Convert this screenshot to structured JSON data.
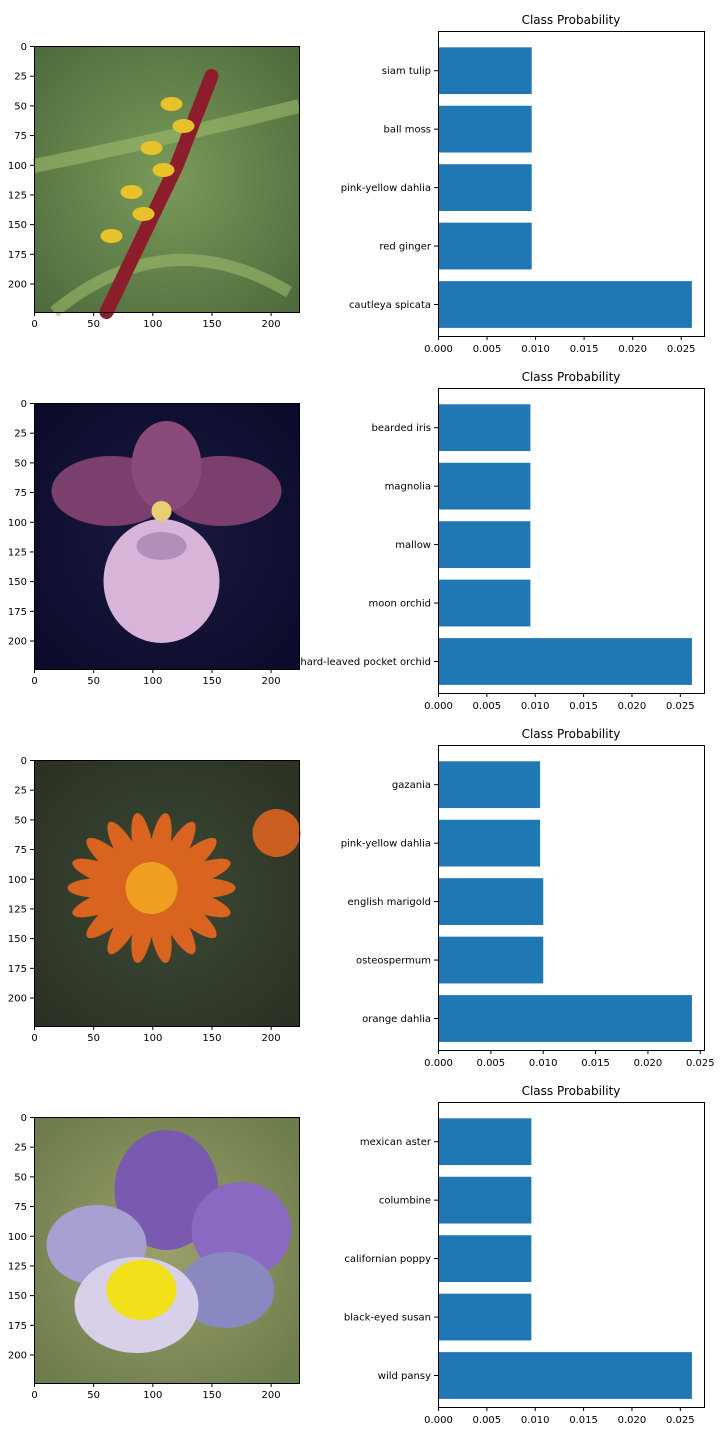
{
  "bar_color": "#1f77b4",
  "image_axis": {
    "xticks": [
      0,
      50,
      100,
      150,
      200
    ],
    "yticks": [
      0,
      25,
      50,
      75,
      100,
      125,
      150,
      175,
      200
    ],
    "xlim": [
      0,
      224
    ],
    "ylim": [
      224,
      0
    ]
  },
  "panels": [
    {
      "image_icon": "cautleya-spicata-flower-photo",
      "image_colors": {
        "bg": "#4d6a3c",
        "mid": "#7a9a5a",
        "stem": "#8b1e2a",
        "petal": "#e8c22a"
      }
    },
    {
      "image_icon": "hard-leaved-pocket-orchid-photo",
      "image_colors": {
        "bg": "#0a0a2a",
        "mid": "#1a1a40",
        "stem": "#7b3f6e",
        "petal": "#d8b4d8"
      }
    },
    {
      "image_icon": "orange-dahlia-photo",
      "image_colors": {
        "bg": "#2a3024",
        "mid": "#3c4a34",
        "stem": "#d9641f",
        "petal": "#f0a020"
      }
    },
    {
      "image_icon": "wild-pansy-photo",
      "image_colors": {
        "bg": "#6a7a4a",
        "mid": "#9aa06a",
        "stem": "#7a5ab0",
        "petal": "#f2e01a"
      }
    }
  ],
  "chart_data": [
    {
      "type": "bar",
      "orientation": "horizontal",
      "title": "Class Probability",
      "categories": [
        "cautleya spicata",
        "red ginger",
        "pink-yellow dahlia",
        "ball moss",
        "siam tulip"
      ],
      "values": [
        0.0261,
        0.0096,
        0.0096,
        0.0096,
        0.0096
      ],
      "xlim": [
        0,
        0.0274
      ],
      "xticks": [
        0.0,
        0.005,
        0.01,
        0.015,
        0.02,
        0.025
      ],
      "xtick_labels": [
        "0.000",
        "0.005",
        "0.010",
        "0.015",
        "0.020",
        "0.025"
      ]
    },
    {
      "type": "bar",
      "orientation": "horizontal",
      "title": "Class Probability",
      "categories": [
        "hard-leaved pocket orchid",
        "moon orchid",
        "mallow",
        "magnolia",
        "bearded iris"
      ],
      "values": [
        0.0262,
        0.0095,
        0.0095,
        0.0095,
        0.0095
      ],
      "xlim": [
        0,
        0.0275
      ],
      "xticks": [
        0.0,
        0.005,
        0.01,
        0.015,
        0.02,
        0.025
      ],
      "xtick_labels": [
        "0.000",
        "0.005",
        "0.010",
        "0.015",
        "0.020",
        "0.025"
      ]
    },
    {
      "type": "bar",
      "orientation": "horizontal",
      "title": "Class Probability",
      "categories": [
        "orange dahlia",
        "osteospermum",
        "english marigold",
        "pink-yellow dahlia",
        "gazania"
      ],
      "values": [
        0.0242,
        0.01,
        0.01,
        0.0097,
        0.0097
      ],
      "xlim": [
        0,
        0.0254
      ],
      "xticks": [
        0.0,
        0.005,
        0.01,
        0.015,
        0.02,
        0.025
      ],
      "xtick_labels": [
        "0.000",
        "0.005",
        "0.010",
        "0.015",
        "0.020",
        "0.025"
      ]
    },
    {
      "type": "bar",
      "orientation": "horizontal",
      "title": "Class Probability",
      "categories": [
        "wild pansy",
        "black-eyed susan",
        "californian poppy",
        "columbine",
        "mexican aster"
      ],
      "values": [
        0.0262,
        0.0096,
        0.0096,
        0.0096,
        0.0096
      ],
      "xlim": [
        0,
        0.0275
      ],
      "xticks": [
        0.0,
        0.005,
        0.01,
        0.015,
        0.02,
        0.025
      ],
      "xtick_labels": [
        "0.000",
        "0.005",
        "0.010",
        "0.015",
        "0.020",
        "0.025"
      ]
    }
  ]
}
